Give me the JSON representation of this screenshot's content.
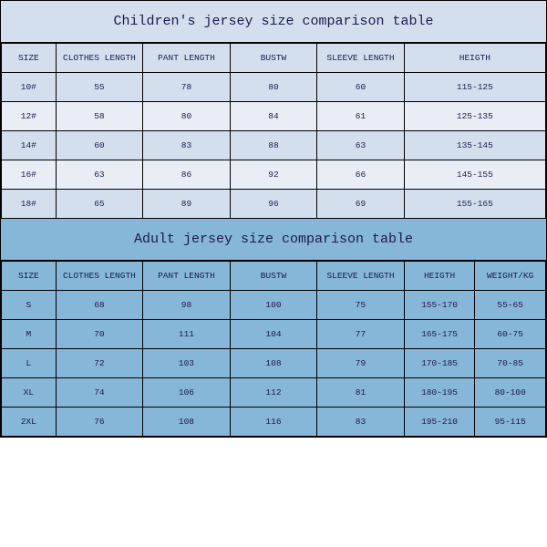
{
  "children": {
    "title": "Children's jersey size comparison table",
    "columns": [
      "SIZE",
      "CLOTHES LENGTH",
      "PANT LENGTH",
      "BUSTW",
      "SLEEVE LENGTH",
      "HEIGTH"
    ],
    "rows": [
      [
        "10#",
        "55",
        "78",
        "80",
        "60",
        "115-125"
      ],
      [
        "12#",
        "58",
        "80",
        "84",
        "61",
        "125-135"
      ],
      [
        "14#",
        "60",
        "83",
        "88",
        "63",
        "135-145"
      ],
      [
        "16#",
        "63",
        "86",
        "92",
        "66",
        "145-155"
      ],
      [
        "18#",
        "65",
        "89",
        "96",
        "69",
        "155-165"
      ]
    ],
    "title_bg": "#d4dfee",
    "row_even_bg": "#e8edf6",
    "row_odd_bg": "#d4dfee",
    "header_bg": "#d4dfee"
  },
  "adult": {
    "title": "Adult jersey size comparison table",
    "columns": [
      "SIZE",
      "CLOTHES LENGTH",
      "PANT LENGTH",
      "BUSTW",
      "SLEEVE LENGTH",
      "HEIGTH",
      "WEIGHT/KG"
    ],
    "rows": [
      [
        "S",
        "68",
        "98",
        "100",
        "75",
        "155-170",
        "55-65"
      ],
      [
        "M",
        "70",
        "111",
        "104",
        "77",
        "165-175",
        "60-75"
      ],
      [
        "L",
        "72",
        "103",
        "108",
        "79",
        "170-185",
        "70-85"
      ],
      [
        "XL",
        "74",
        "106",
        "112",
        "81",
        "180-195",
        "80-100"
      ],
      [
        "2XL",
        "76",
        "108",
        "116",
        "83",
        "195-210",
        "95-115"
      ]
    ],
    "title_bg": "#86b6d8",
    "row_bg": "#86b6d8",
    "header_bg": "#86b6d8"
  },
  "border_color": "#000000",
  "text_color": "#1a1a4a",
  "title_fontsize": 15,
  "cell_fontsize": 9.5,
  "font_family": "Courier New"
}
